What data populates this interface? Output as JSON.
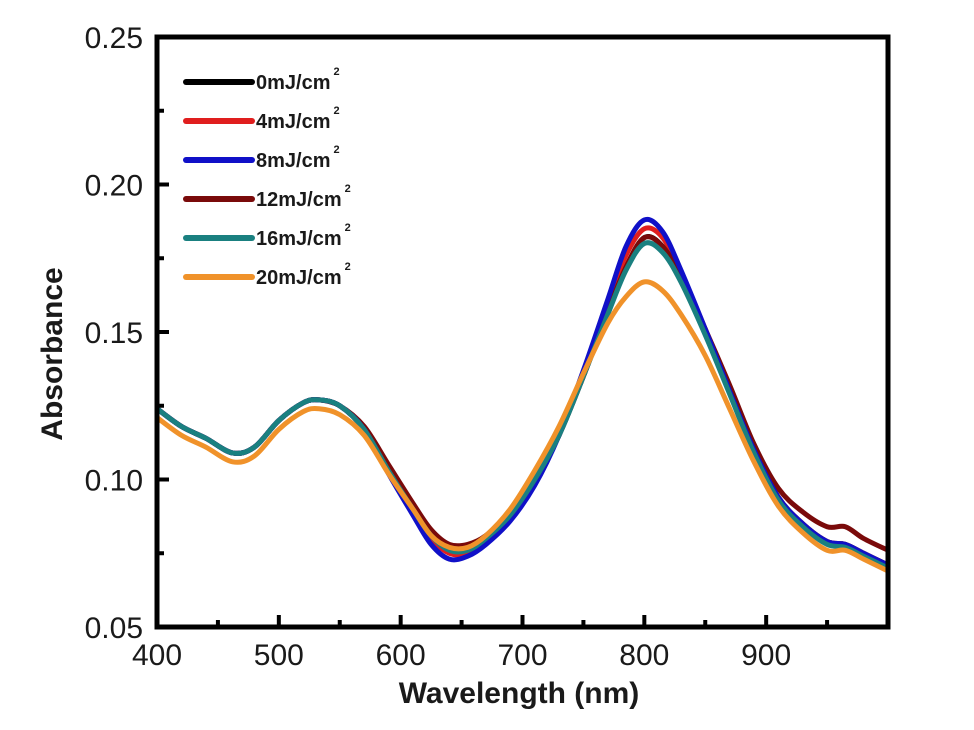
{
  "chart_data": {
    "type": "line",
    "title": "",
    "xlabel": "Wavelength (nm)",
    "ylabel": "Absorbance",
    "xlim": [
      400,
      1000
    ],
    "ylim": [
      0.05,
      0.25
    ],
    "xticks": [
      400,
      500,
      600,
      700,
      800,
      900
    ],
    "xtick_labels": [
      "400",
      "500",
      "600",
      "700",
      "800",
      "900"
    ],
    "xminor": [
      450,
      550,
      650,
      750,
      850,
      950
    ],
    "yticks": [
      0.05,
      0.1,
      0.15,
      0.2,
      0.25
    ],
    "ytick_labels": [
      "0.05",
      "0.10",
      "0.15",
      "0.20",
      "0.25"
    ],
    "yminor": [
      0.075,
      0.125,
      0.175,
      0.225
    ],
    "grid": false,
    "legend_position": "top-left",
    "x": [
      400,
      420,
      440,
      462,
      480,
      500,
      520,
      533,
      550,
      570,
      590,
      610,
      625,
      640,
      655,
      670,
      690,
      710,
      730,
      750,
      770,
      785,
      800,
      815,
      830,
      850,
      870,
      890,
      910,
      930,
      950,
      965,
      980,
      1000
    ],
    "series": [
      {
        "name": "0mJ/cm",
        "sup": "2",
        "color": "#000000",
        "values": [
          0.124,
          0.118,
          0.114,
          0.109,
          0.111,
          0.12,
          0.126,
          0.127,
          0.125,
          0.117,
          0.103,
          0.09,
          0.082,
          0.077,
          0.077,
          0.08,
          0.088,
          0.1,
          0.115,
          0.135,
          0.157,
          0.172,
          0.182,
          0.179,
          0.168,
          0.15,
          0.13,
          0.11,
          0.094,
          0.085,
          0.079,
          0.078,
          0.075,
          0.071
        ]
      },
      {
        "name": "4mJ/cm",
        "sup": "2",
        "color": "#e01e1e",
        "values": [
          0.124,
          0.118,
          0.114,
          0.109,
          0.111,
          0.12,
          0.126,
          0.127,
          0.125,
          0.117,
          0.103,
          0.089,
          0.08,
          0.075,
          0.075,
          0.079,
          0.087,
          0.099,
          0.115,
          0.136,
          0.159,
          0.176,
          0.185,
          0.182,
          0.17,
          0.151,
          0.13,
          0.11,
          0.094,
          0.085,
          0.079,
          0.078,
          0.075,
          0.071
        ]
      },
      {
        "name": "8mJ/cm",
        "sup": "2",
        "color": "#1010c8",
        "values": [
          0.124,
          0.118,
          0.114,
          0.109,
          0.111,
          0.12,
          0.126,
          0.127,
          0.125,
          0.117,
          0.102,
          0.088,
          0.078,
          0.073,
          0.074,
          0.078,
          0.086,
          0.098,
          0.115,
          0.137,
          0.161,
          0.179,
          0.188,
          0.184,
          0.171,
          0.151,
          0.13,
          0.11,
          0.094,
          0.085,
          0.079,
          0.078,
          0.075,
          0.071
        ]
      },
      {
        "name": "12mJ/cm",
        "sup": "2",
        "color": "#7a0a0a",
        "values": [
          0.124,
          0.118,
          0.114,
          0.109,
          0.111,
          0.12,
          0.126,
          0.127,
          0.125,
          0.118,
          0.105,
          0.092,
          0.083,
          0.078,
          0.078,
          0.081,
          0.089,
          0.101,
          0.116,
          0.135,
          0.157,
          0.172,
          0.182,
          0.179,
          0.169,
          0.151,
          0.132,
          0.112,
          0.097,
          0.089,
          0.084,
          0.084,
          0.08,
          0.076
        ]
      },
      {
        "name": "16mJ/cm",
        "sup": "2",
        "color": "#1a8080",
        "values": [
          0.124,
          0.118,
          0.114,
          0.109,
          0.111,
          0.12,
          0.126,
          0.127,
          0.125,
          0.117,
          0.103,
          0.09,
          0.081,
          0.076,
          0.076,
          0.08,
          0.088,
          0.1,
          0.115,
          0.135,
          0.156,
          0.171,
          0.18,
          0.177,
          0.167,
          0.149,
          0.129,
          0.109,
          0.093,
          0.084,
          0.078,
          0.077,
          0.074,
          0.07
        ]
      },
      {
        "name": "20mJ/cm",
        "sup": "2",
        "color": "#f0922a",
        "values": [
          0.121,
          0.115,
          0.111,
          0.106,
          0.108,
          0.117,
          0.123,
          0.124,
          0.122,
          0.115,
          0.102,
          0.09,
          0.081,
          0.077,
          0.077,
          0.081,
          0.09,
          0.103,
          0.118,
          0.136,
          0.153,
          0.162,
          0.167,
          0.164,
          0.156,
          0.142,
          0.124,
          0.106,
          0.091,
          0.082,
          0.076,
          0.076,
          0.073,
          0.069
        ]
      }
    ]
  }
}
